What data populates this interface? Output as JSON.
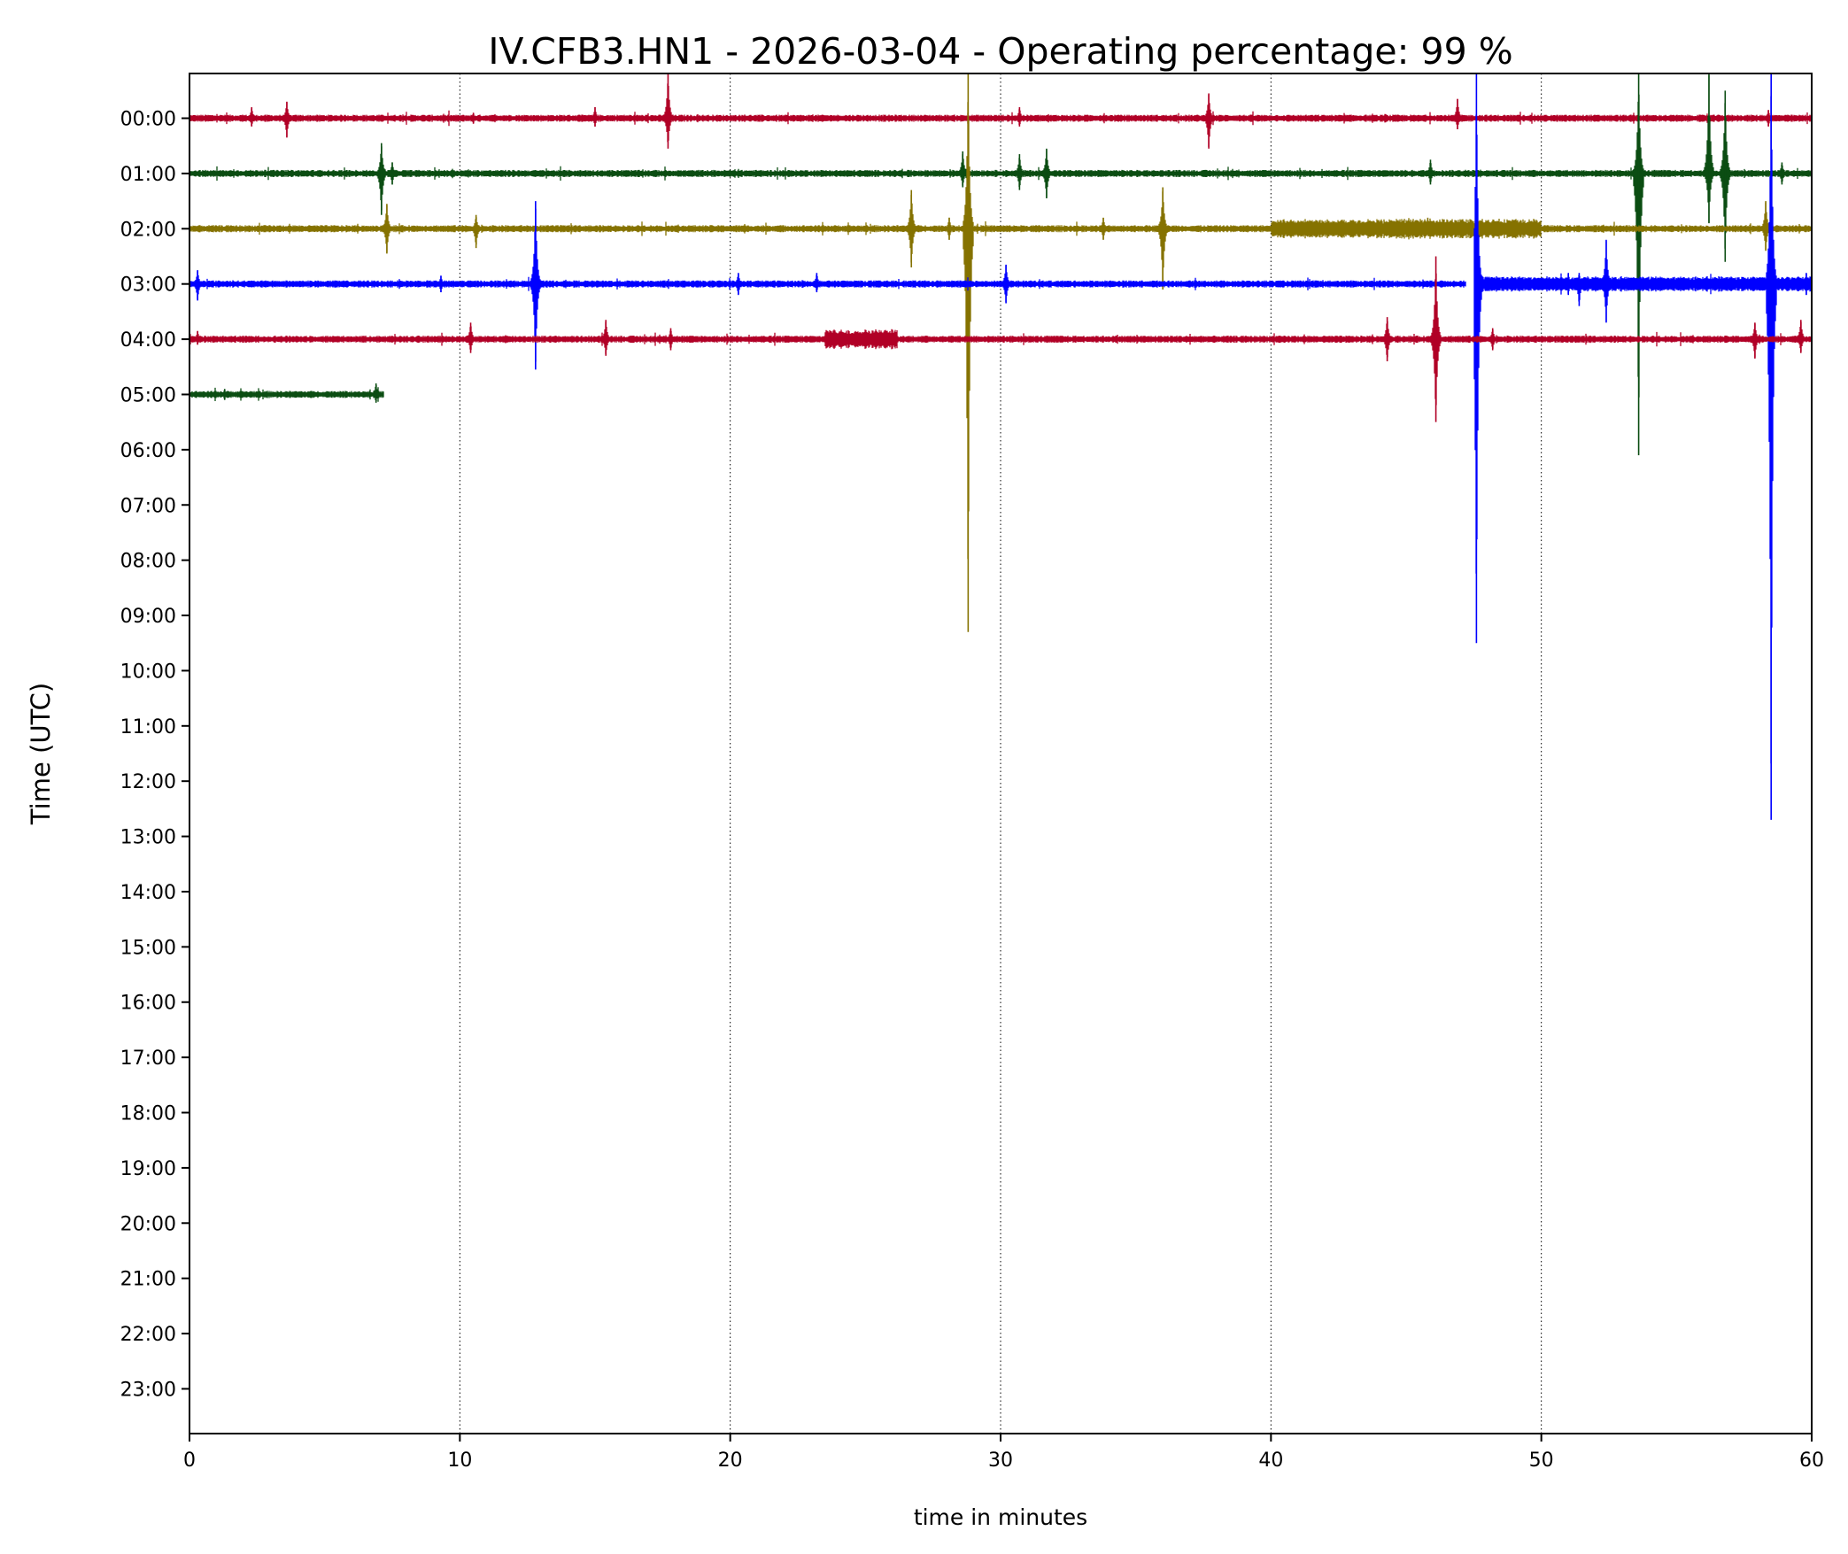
{
  "chart_data": {
    "type": "line",
    "title": "IV.CFB3.HN1 - 2026-03-04 - Operating percentage: 99 %",
    "xlabel": "time in minutes",
    "ylabel": "Time (UTC)",
    "xlim": [
      0,
      60
    ],
    "xticks": [
      "0",
      "10",
      "20",
      "30",
      "40",
      "50",
      "60"
    ],
    "yticks": [
      "00:00",
      "01:00",
      "02:00",
      "03:00",
      "04:00",
      "05:00",
      "06:00",
      "07:00",
      "08:00",
      "09:00",
      "10:00",
      "11:00",
      "12:00",
      "13:00",
      "14:00",
      "15:00",
      "16:00",
      "17:00",
      "18:00",
      "19:00",
      "20:00",
      "21:00",
      "22:00",
      "23:00"
    ],
    "grid": "vertical dotted at major x ticks",
    "trace_colors": [
      "#b10026",
      "#0b4d12",
      "#857200",
      "#0000ff"
    ],
    "traces": [
      {
        "hour": 0,
        "start": 0,
        "end": 60,
        "color": "#b10026",
        "events": [
          [
            2.3,
            0.2,
            0.15
          ],
          [
            3.6,
            0.3,
            0.35
          ],
          [
            10.5,
            0.1,
            0.1
          ],
          [
            15,
            0.2,
            0.15
          ],
          [
            17.7,
            0.8,
            0.55
          ],
          [
            30.7,
            0.2,
            0.15
          ],
          [
            37.7,
            0.45,
            0.55
          ],
          [
            46.9,
            0.35,
            0.2
          ],
          [
            58.4,
            0.15,
            0.15
          ]
        ]
      },
      {
        "hour": 1,
        "start": 0,
        "end": 60,
        "color": "#0b4d12",
        "events": [
          [
            7.1,
            0.55,
            0.75
          ],
          [
            7.5,
            0.2,
            0.2
          ],
          [
            28.6,
            0.4,
            0.25
          ],
          [
            30.7,
            0.35,
            0.3
          ],
          [
            31.7,
            0.45,
            0.45
          ],
          [
            45.9,
            0.25,
            0.2
          ],
          [
            53.6,
            1.8,
            5.1
          ],
          [
            56.2,
            1.8,
            0.9
          ],
          [
            56.8,
            1.5,
            1.6
          ],
          [
            58.9,
            0.2,
            0.2
          ]
        ]
      },
      {
        "hour": 2,
        "start": 0,
        "end": 60,
        "color": "#857200",
        "events": [
          [
            7.3,
            0.45,
            0.45
          ],
          [
            10.6,
            0.25,
            0.35
          ],
          [
            26.7,
            0.7,
            0.7
          ],
          [
            28.1,
            0.2,
            0.2
          ],
          [
            28.8,
            2.8,
            7.3
          ],
          [
            33.8,
            0.2,
            0.2
          ],
          [
            36.0,
            0.75,
            1.1
          ],
          [
            45.8,
            0.2,
            0.1
          ],
          [
            58.3,
            0.5,
            0.4
          ]
        ],
        "bursts": [
          [
            40,
            50,
            0.12
          ]
        ]
      },
      {
        "hour": 3,
        "start": 0,
        "end": 60,
        "gap": [
          47.2,
          47.5
        ],
        "color": "#0000ff",
        "events": [
          [
            0.3,
            0.25,
            0.3
          ],
          [
            9.3,
            0.15,
            0.15
          ],
          [
            12.8,
            1.5,
            1.55
          ],
          [
            20.3,
            0.2,
            0.2
          ],
          [
            23.2,
            0.2,
            0.15
          ],
          [
            30.2,
            0.35,
            0.35
          ],
          [
            47.6,
            3.8,
            6.5
          ],
          [
            51,
            0.2,
            0.2
          ],
          [
            51.4,
            0.2,
            0.4
          ],
          [
            52.4,
            0.8,
            0.7
          ],
          [
            58.5,
            3.8,
            9.7
          ],
          [
            59.8,
            0.2,
            0.2
          ]
        ],
        "bursts": [
          [
            47.5,
            60,
            0.08
          ]
        ]
      },
      {
        "hour": 4,
        "start": 0,
        "end": 60,
        "color": "#b10026",
        "events": [
          [
            0.3,
            0.15,
            0.1
          ],
          [
            10.4,
            0.3,
            0.25
          ],
          [
            15.4,
            0.35,
            0.3
          ],
          [
            17.8,
            0.2,
            0.2
          ],
          [
            44.3,
            0.4,
            0.4
          ],
          [
            46.1,
            1.5,
            1.5
          ],
          [
            48.2,
            0.2,
            0.2
          ],
          [
            57.9,
            0.3,
            0.35
          ],
          [
            59.6,
            0.35,
            0.25
          ]
        ],
        "bursts": [
          [
            23.5,
            26.2,
            0.12
          ]
        ]
      },
      {
        "hour": 5,
        "start": 0,
        "end": 7.2,
        "color": "#0b4d12",
        "events": [
          [
            1.3,
            0.1,
            0.1
          ],
          [
            6.9,
            0.2,
            0.15
          ]
        ]
      }
    ]
  }
}
